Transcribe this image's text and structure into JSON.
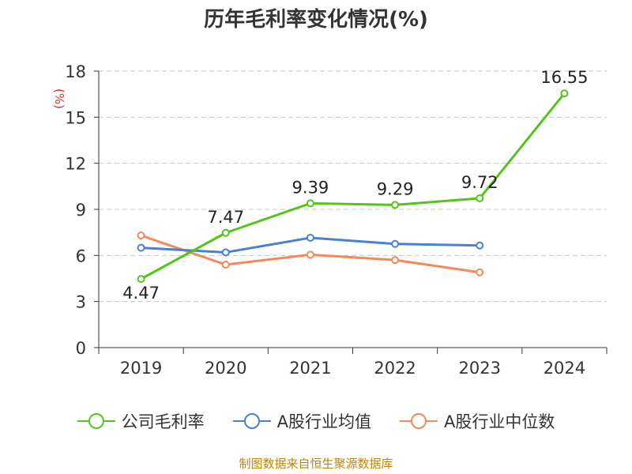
{
  "title": "历年毛利率变化情况(%)",
  "source": "制图数据来自恒生聚源数据库",
  "colors": {
    "gross_margin": "#52c41a",
    "industry_mean": "#4a7fd8",
    "industry_median": "#f28a5b"
  },
  "chart_data": {
    "type": "line",
    "title": "历年毛利率变化情况(%)",
    "ylabel": "(%)",
    "xlabel": "",
    "ylim": [
      0,
      18
    ],
    "yticks": [
      0,
      3,
      6,
      9,
      12,
      15,
      18
    ],
    "categories": [
      "2019",
      "2020",
      "2021",
      "2022",
      "2023",
      "2024"
    ],
    "grid": true,
    "legend_position": "bottom",
    "series": [
      {
        "name": "公司毛利率",
        "color_key": "gross_margin",
        "values": [
          4.47,
          7.47,
          9.39,
          9.29,
          9.72,
          16.55
        ],
        "labels": [
          "4.47",
          "7.47",
          "9.39",
          "9.29",
          "9.72",
          "16.55"
        ]
      },
      {
        "name": "A股行业均值",
        "color_key": "industry_mean",
        "values": [
          6.5,
          6.2,
          7.15,
          6.75,
          6.65,
          null
        ]
      },
      {
        "name": "A股行业中位数",
        "color_key": "industry_median",
        "values": [
          7.3,
          5.4,
          6.05,
          5.7,
          4.9,
          null
        ]
      }
    ]
  }
}
